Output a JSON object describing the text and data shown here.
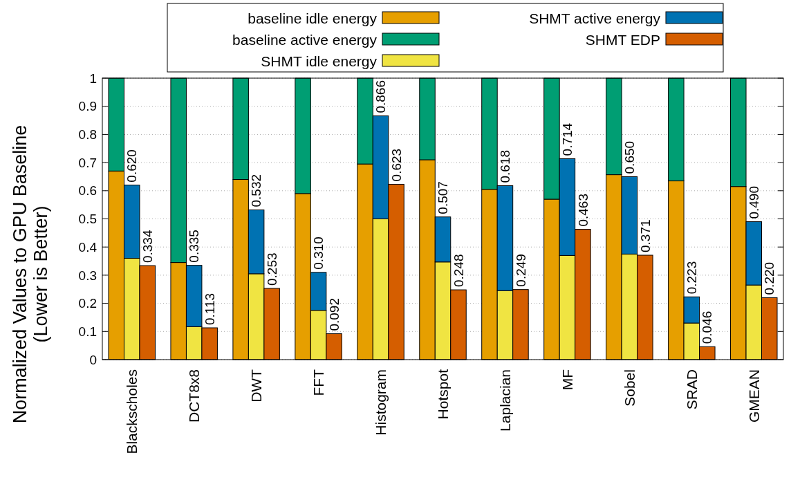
{
  "chart_data": {
    "type": "bar",
    "ylabel": "Normalized Values to GPU Baseline\n(Lower is Better)",
    "categories": [
      null,
      "Blackscholes",
      null,
      null,
      null,
      "DCT8x8",
      null,
      null,
      null,
      "DWT",
      null,
      null,
      null,
      "FFT",
      null,
      null,
      null,
      "Histogram",
      null,
      null,
      null,
      "Hotspot",
      null,
      null,
      null,
      "Laplacian",
      null,
      null,
      null,
      "MF",
      null,
      null,
      null,
      "Sobel",
      null,
      null,
      null,
      "SRAD",
      null,
      null,
      null,
      "GMEAN",
      null
    ],
    "ylim": [
      0,
      1
    ],
    "yticks": [
      0,
      0.1,
      0.2,
      0.3,
      0.4,
      0.5,
      0.6,
      0.7,
      0.8,
      0.9,
      1
    ],
    "grid": "y",
    "legend": "top",
    "stacked": true,
    "series": [
      {
        "name": "baseline idle energy",
        "color": "#e69f00",
        "values": [
          0.67,
          null,
          null,
          null,
          0.345,
          null,
          null,
          null,
          0.64,
          null,
          null,
          null,
          0.59,
          null,
          null,
          null,
          0.695,
          null,
          null,
          null,
          0.71,
          null,
          null,
          null,
          0.605,
          null,
          null,
          null,
          0.57,
          null,
          null,
          null,
          0.657,
          null,
          null,
          null,
          0.635,
          null,
          null,
          null,
          0.615,
          null,
          null
        ]
      },
      {
        "name": "baseline active energy",
        "color": "#009e73",
        "values": [
          0.33,
          null,
          null,
          null,
          0.655,
          null,
          null,
          null,
          0.36,
          null,
          null,
          null,
          0.41,
          null,
          null,
          null,
          0.305,
          null,
          null,
          null,
          0.29,
          null,
          null,
          null,
          0.395,
          null,
          null,
          null,
          0.43,
          null,
          null,
          null,
          0.343,
          null,
          null,
          null,
          0.365,
          null,
          null,
          null,
          0.385,
          null,
          null
        ]
      },
      {
        "name": "SHMT idle energy",
        "color": "#f0e442",
        "values": [
          null,
          0.36,
          null,
          null,
          null,
          0.117,
          null,
          null,
          null,
          0.305,
          null,
          null,
          null,
          0.175,
          null,
          null,
          null,
          0.5,
          null,
          null,
          null,
          0.347,
          null,
          null,
          null,
          0.245,
          null,
          null,
          null,
          0.37,
          null,
          null,
          null,
          0.375,
          null,
          null,
          null,
          0.13,
          null,
          null,
          null,
          0.265,
          null
        ]
      },
      {
        "name": "SHMT active energy",
        "color": "#0072b2",
        "values": [
          null,
          0.26,
          null,
          null,
          null,
          0.218,
          null,
          null,
          null,
          0.227,
          null,
          null,
          null,
          0.135,
          null,
          null,
          null,
          0.366,
          null,
          null,
          null,
          0.16,
          null,
          null,
          null,
          0.373,
          null,
          null,
          null,
          0.344,
          null,
          null,
          null,
          0.275,
          null,
          null,
          null,
          0.093,
          null,
          null,
          null,
          0.225,
          null
        ]
      },
      {
        "name": "SHMT EDP",
        "color": "#d55e00",
        "values": [
          null,
          null,
          0.334,
          null,
          null,
          null,
          0.113,
          null,
          null,
          null,
          0.253,
          null,
          null,
          null,
          0.092,
          null,
          null,
          null,
          0.623,
          null,
          null,
          null,
          0.248,
          null,
          null,
          null,
          0.249,
          null,
          null,
          null,
          0.463,
          null,
          null,
          null,
          0.371,
          null,
          null,
          null,
          0.046,
          null,
          null,
          null,
          0.22
        ]
      }
    ],
    "totals": [
      null,
      "0.620",
      "0.334",
      null,
      null,
      "0.335",
      "0.113",
      null,
      null,
      "0.532",
      "0.253",
      null,
      null,
      "0.310",
      "0.092",
      null,
      null,
      "0.866",
      "0.623",
      null,
      null,
      "0.507",
      "0.248",
      null,
      null,
      "0.618",
      "0.249",
      null,
      null,
      "0.714",
      "0.463",
      null,
      null,
      "0.650",
      "0.371",
      null,
      null,
      "0.223",
      "0.046",
      null,
      null,
      "0.490",
      "0.220"
    ]
  }
}
